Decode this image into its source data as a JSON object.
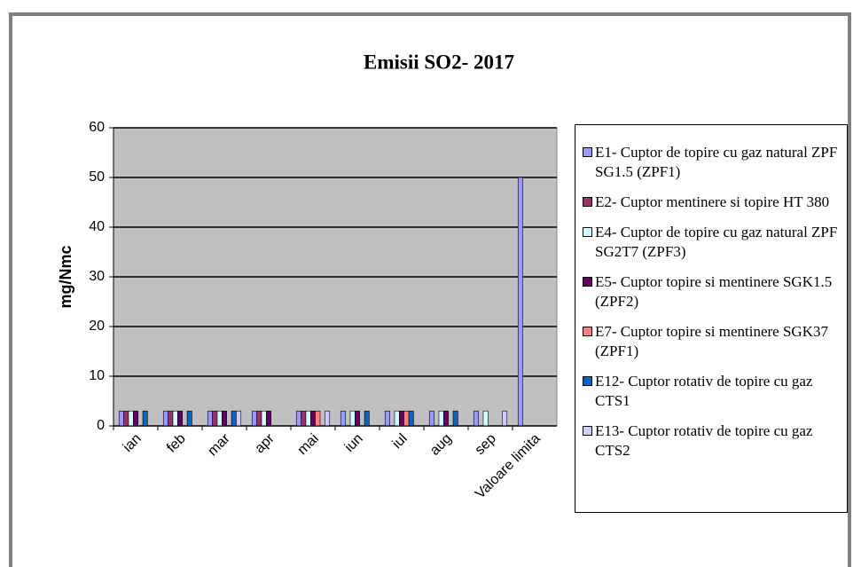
{
  "chart_data": {
    "type": "bar",
    "title": "Emisii SO2- 2017",
    "y_label": "mg/Nmc",
    "categories": [
      "ian",
      "feb",
      "mar",
      "apr",
      "mai",
      "iun",
      "iul",
      "aug",
      "sep",
      "Valoare limita"
    ],
    "series": [
      {
        "name": "E1- Cuptor de topire cu gaz natural ZPF SG1.5 (ZPF1)",
        "color": "#9999ff",
        "values": [
          3,
          3,
          3,
          3,
          3,
          3,
          3,
          3,
          3,
          50
        ]
      },
      {
        "name": "E2- Cuptor mentinere si topire HT 380",
        "color": "#993366",
        "values": [
          3,
          3,
          3,
          3,
          3,
          null,
          null,
          null,
          null,
          null
        ]
      },
      {
        "name": "E4- Cuptor de topire cu gaz natural ZPF SG2T7 (ZPF3)",
        "color": "#ccffff",
        "values": [
          3,
          3,
          3,
          3,
          3,
          3,
          3,
          3,
          3,
          null
        ]
      },
      {
        "name": "E5- Cuptor topire si mentinere SGK1.5 (ZPF2)",
        "color": "#660066",
        "values": [
          3,
          3,
          3,
          3,
          3,
          3,
          3,
          3,
          null,
          null
        ]
      },
      {
        "name": "E7- Cuptor topire si mentinere SGK37 (ZPF1)",
        "color": "#ff8080",
        "values": [
          null,
          null,
          null,
          null,
          3,
          null,
          3,
          null,
          null,
          null
        ]
      },
      {
        "name": "E12- Cuptor rotativ de topire cu gaz CTS1",
        "color": "#0066cc",
        "values": [
          3,
          3,
          3,
          null,
          null,
          3,
          3,
          3,
          null,
          null
        ]
      },
      {
        "name": "E13- Cuptor rotativ de topire cu gaz CTS2",
        "color": "#ccccff",
        "values": [
          null,
          null,
          3,
          null,
          3,
          null,
          null,
          null,
          3,
          null
        ]
      }
    ],
    "ylim": [
      0,
      60
    ],
    "yticks": [
      0,
      10,
      20,
      30,
      40,
      50,
      60
    ],
    "grid": true
  }
}
